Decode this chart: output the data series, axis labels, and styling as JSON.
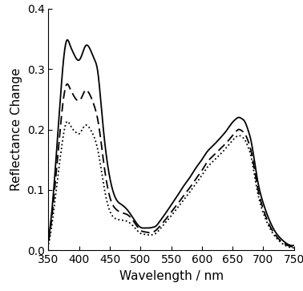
{
  "title": "",
  "xlabel": "Wavelength / nm",
  "ylabel": "Reflectance Change",
  "xlim": [
    350,
    750
  ],
  "ylim": [
    0.0,
    0.4
  ],
  "yticks": [
    0.0,
    0.1,
    0.2,
    0.3,
    0.4
  ],
  "xticks": [
    350,
    400,
    450,
    500,
    550,
    600,
    650,
    700,
    750
  ],
  "background_color": "#ffffff",
  "line_color": "#000000",
  "solid_key_x": [
    350,
    355,
    360,
    365,
    370,
    375,
    380,
    385,
    390,
    395,
    400,
    405,
    410,
    415,
    420,
    425,
    430,
    435,
    440,
    450,
    460,
    470,
    480,
    490,
    500,
    510,
    515,
    520,
    525,
    530,
    540,
    550,
    560,
    570,
    580,
    590,
    600,
    610,
    615,
    620,
    630,
    640,
    650,
    655,
    660,
    665,
    670,
    675,
    680,
    690,
    700,
    710,
    720,
    730,
    740,
    750
  ],
  "solid_key_y": [
    0.02,
    0.06,
    0.12,
    0.19,
    0.26,
    0.32,
    0.348,
    0.34,
    0.328,
    0.318,
    0.315,
    0.325,
    0.338,
    0.338,
    0.328,
    0.316,
    0.298,
    0.25,
    0.195,
    0.12,
    0.085,
    0.075,
    0.065,
    0.05,
    0.038,
    0.037,
    0.037,
    0.038,
    0.04,
    0.046,
    0.06,
    0.075,
    0.09,
    0.106,
    0.12,
    0.136,
    0.15,
    0.165,
    0.17,
    0.175,
    0.186,
    0.198,
    0.212,
    0.217,
    0.22,
    0.218,
    0.213,
    0.2,
    0.182,
    0.12,
    0.078,
    0.05,
    0.03,
    0.018,
    0.01,
    0.008
  ],
  "dashed_key_x": [
    350,
    355,
    360,
    365,
    370,
    375,
    380,
    385,
    390,
    395,
    400,
    405,
    410,
    415,
    420,
    425,
    430,
    435,
    440,
    450,
    460,
    470,
    480,
    490,
    500,
    510,
    515,
    520,
    525,
    530,
    540,
    550,
    560,
    570,
    580,
    590,
    600,
    610,
    615,
    620,
    630,
    640,
    650,
    655,
    660,
    665,
    670,
    675,
    680,
    690,
    700,
    710,
    720,
    730,
    740,
    750
  ],
  "dashed_key_y": [
    0.015,
    0.05,
    0.1,
    0.155,
    0.21,
    0.255,
    0.275,
    0.268,
    0.258,
    0.25,
    0.248,
    0.255,
    0.265,
    0.262,
    0.252,
    0.238,
    0.218,
    0.185,
    0.145,
    0.088,
    0.068,
    0.062,
    0.058,
    0.046,
    0.033,
    0.03,
    0.029,
    0.03,
    0.033,
    0.038,
    0.05,
    0.063,
    0.076,
    0.09,
    0.103,
    0.118,
    0.132,
    0.148,
    0.153,
    0.158,
    0.168,
    0.178,
    0.19,
    0.196,
    0.2,
    0.198,
    0.193,
    0.182,
    0.165,
    0.108,
    0.068,
    0.042,
    0.025,
    0.014,
    0.008,
    0.005
  ],
  "dotted_key_x": [
    350,
    355,
    360,
    365,
    370,
    375,
    380,
    385,
    390,
    395,
    400,
    405,
    410,
    415,
    420,
    425,
    430,
    435,
    440,
    450,
    460,
    470,
    480,
    490,
    500,
    510,
    515,
    520,
    525,
    530,
    540,
    550,
    560,
    570,
    580,
    590,
    600,
    610,
    615,
    620,
    630,
    640,
    650,
    655,
    660,
    665,
    670,
    675,
    680,
    690,
    700,
    710,
    720,
    730,
    740,
    750
  ],
  "dotted_key_y": [
    0.01,
    0.038,
    0.078,
    0.12,
    0.16,
    0.195,
    0.213,
    0.208,
    0.2,
    0.195,
    0.193,
    0.2,
    0.207,
    0.205,
    0.197,
    0.186,
    0.168,
    0.14,
    0.108,
    0.065,
    0.052,
    0.05,
    0.047,
    0.038,
    0.028,
    0.026,
    0.025,
    0.026,
    0.028,
    0.033,
    0.045,
    0.057,
    0.07,
    0.083,
    0.096,
    0.11,
    0.124,
    0.139,
    0.144,
    0.149,
    0.159,
    0.17,
    0.182,
    0.187,
    0.19,
    0.188,
    0.183,
    0.172,
    0.156,
    0.1,
    0.062,
    0.038,
    0.022,
    0.012,
    0.006,
    0.004
  ],
  "linewidth": 1.3,
  "xlabel_fontsize": 11,
  "ylabel_fontsize": 11,
  "tick_fontsize": 10
}
